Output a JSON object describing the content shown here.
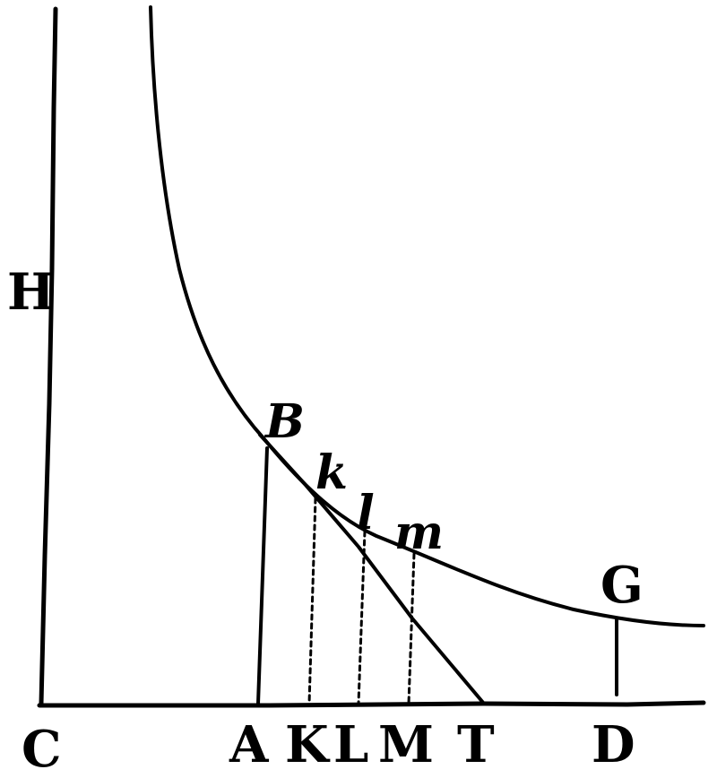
{
  "labels": {
    "H": "H",
    "B": "B",
    "k": "k",
    "l": "l",
    "m": "m",
    "G": "G",
    "C": "C",
    "A": "A",
    "K": "K",
    "L": "L",
    "M": "M",
    "T": "T",
    "D": "D"
  }
}
